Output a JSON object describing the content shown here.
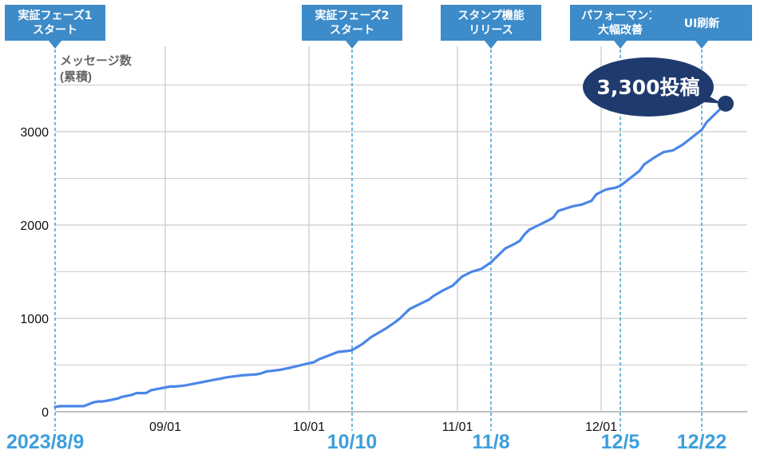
{
  "chart_data": {
    "type": "line",
    "ylabel": [
      "メッセージ数",
      "(累積)"
    ],
    "xlabel": "",
    "x_tick_labels": [
      "09/01",
      "10/01",
      "11/01",
      "12/01"
    ],
    "x_tick_dates": [
      "2023-09-01",
      "2023-10-01",
      "2023-11-01",
      "2023-12-01"
    ],
    "x_range": [
      "2023-08-09",
      "2023-12-31"
    ],
    "y_ticks": [
      0,
      1000,
      2000,
      3000
    ],
    "ylim": [
      0,
      3800
    ],
    "grid": true,
    "line_color": "#4a86e8",
    "series": [
      {
        "x": [
          "2023-08-09",
          "2023-08-10",
          "2023-08-15",
          "2023-08-16",
          "2023-08-17",
          "2023-08-18",
          "2023-08-19",
          "2023-08-20",
          "2023-08-22",
          "2023-08-23",
          "2023-08-25",
          "2023-08-26",
          "2023-08-28",
          "2023-08-29",
          "2023-09-01",
          "2023-09-02",
          "2023-09-03",
          "2023-09-05",
          "2023-09-06",
          "2023-09-08",
          "2023-09-09",
          "2023-09-11",
          "2023-09-13",
          "2023-09-14",
          "2023-09-17",
          "2023-09-20",
          "2023-09-21",
          "2023-09-22",
          "2023-09-25",
          "2023-09-26",
          "2023-09-27",
          "2023-10-01",
          "2023-10-02",
          "2023-10-03",
          "2023-10-04",
          "2023-10-06",
          "2023-10-07",
          "2023-10-09",
          "2023-10-10",
          "2023-10-12",
          "2023-10-13",
          "2023-10-14",
          "2023-10-16",
          "2023-10-17",
          "2023-10-19",
          "2023-10-20",
          "2023-10-21",
          "2023-10-22",
          "2023-10-24",
          "2023-10-26",
          "2023-10-27",
          "2023-10-29",
          "2023-10-31",
          "2023-11-01",
          "2023-11-02",
          "2023-11-04",
          "2023-11-06",
          "2023-11-08",
          "2023-11-10",
          "2023-11-11",
          "2023-11-13",
          "2023-11-14",
          "2023-11-15",
          "2023-11-16",
          "2023-11-18",
          "2023-11-20",
          "2023-11-21",
          "2023-11-22",
          "2023-11-25",
          "2023-11-27",
          "2023-11-29",
          "2023-11-30",
          "2023-12-02",
          "2023-12-04",
          "2023-12-05",
          "2023-12-07",
          "2023-12-09",
          "2023-12-10",
          "2023-12-12",
          "2023-12-14",
          "2023-12-16",
          "2023-12-18",
          "2023-12-19",
          "2023-12-21",
          "2023-12-22",
          "2023-12-23",
          "2023-12-25",
          "2023-12-27"
        ],
        "y": [
          50,
          60,
          60,
          80,
          100,
          110,
          110,
          120,
          140,
          160,
          180,
          200,
          200,
          230,
          260,
          270,
          270,
          280,
          290,
          310,
          320,
          340,
          360,
          370,
          390,
          400,
          410,
          430,
          450,
          460,
          470,
          520,
          530,
          560,
          580,
          620,
          640,
          650,
          660,
          720,
          760,
          800,
          860,
          890,
          960,
          1000,
          1050,
          1100,
          1150,
          1200,
          1240,
          1300,
          1350,
          1400,
          1450,
          1500,
          1530,
          1600,
          1700,
          1750,
          1800,
          1830,
          1900,
          1950,
          2000,
          2050,
          2080,
          2150,
          2200,
          2220,
          2260,
          2330,
          2380,
          2400,
          2420,
          2500,
          2580,
          2650,
          2720,
          2780,
          2800,
          2860,
          2900,
          2980,
          3020,
          3100,
          3200,
          3300
        ]
      }
    ]
  },
  "milestones": [
    {
      "label": [
        "実証フェーズ1",
        "スタート"
      ],
      "date": "2023-08-09",
      "date_label": "2023/8/9"
    },
    {
      "label": [
        "実証フェーズ2",
        "スタート"
      ],
      "date": "2023-10-10",
      "date_label": "10/10"
    },
    {
      "label": [
        "スタンプ機能",
        "リリース"
      ],
      "date": "2023-11-08",
      "date_label": "11/8"
    },
    {
      "label": [
        "パフォーマンス",
        "大幅改善"
      ],
      "date": "2023-12-05",
      "date_label": "12/5"
    },
    {
      "label": [
        "UI刷新"
      ],
      "date": "2023-12-22",
      "date_label": "12/22"
    }
  ],
  "callout": {
    "text": "3,300投稿",
    "value": 3300,
    "date": "2023-12-27"
  },
  "colors": {
    "milestone_bg": "#3d8bc9",
    "milestone_line": "#3399cc",
    "date_text": "#3d9fdb",
    "callout_bg": "#1f3b6e",
    "grid": "#cccccc"
  }
}
